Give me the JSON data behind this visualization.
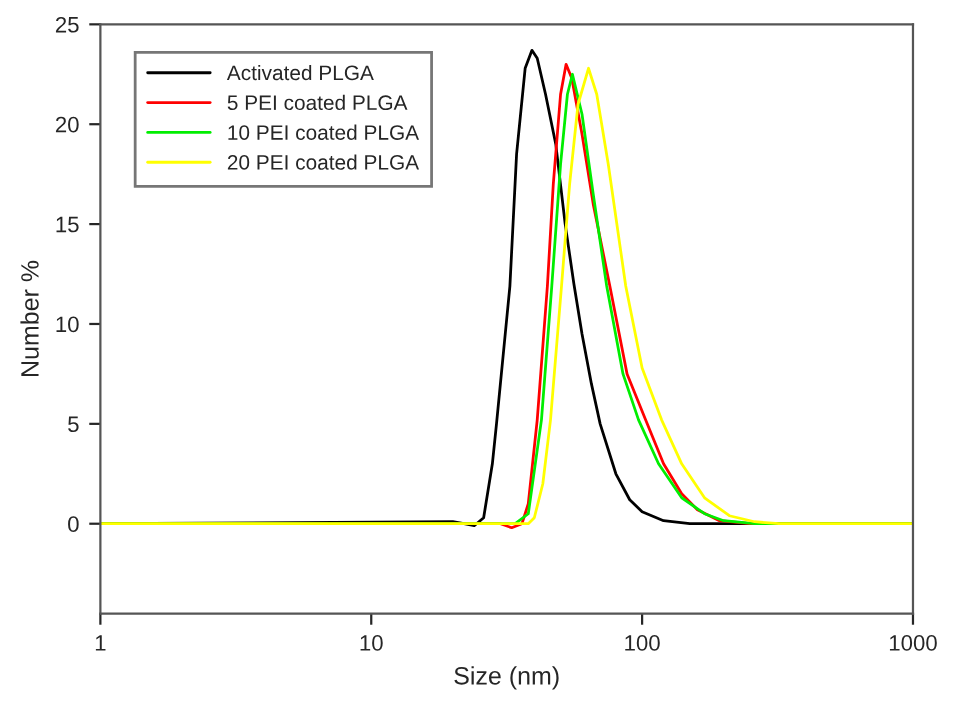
{
  "chart_data": {
    "type": "line",
    "xlabel": "Size (nm)",
    "ylabel": "Number %",
    "log": "x",
    "xlim": [
      1,
      1000
    ],
    "xticks": [
      1,
      10,
      100,
      1000
    ],
    "ylim": [
      -4.5,
      25
    ],
    "yticks": [
      0,
      5,
      10,
      15,
      20,
      25
    ],
    "grid": false,
    "legend": "top left",
    "marker": "none",
    "line_style": "solid",
    "series": [
      {
        "name": "Activated PLGA",
        "color": "#000000",
        "x": [
          1,
          20,
          22,
          24,
          26,
          28,
          29,
          32.5,
          34.4,
          37,
          39.2,
          41,
          44,
          48,
          52,
          56,
          60,
          65,
          70,
          80,
          90,
          100,
          120,
          150,
          1000
        ],
        "values": [
          0,
          0.1,
          0,
          -0.1,
          0.3,
          3,
          5,
          11.9,
          18.5,
          22.8,
          23.7,
          23.3,
          21.5,
          19,
          15,
          12,
          9.5,
          7,
          5,
          2.5,
          1.2,
          0.6,
          0.15,
          0,
          0
        ]
      },
      {
        "name": "5 PEI coated PLGA",
        "color": "#ff0000",
        "x": [
          1,
          30,
          33,
          36,
          38,
          41,
          44.7,
          47,
          50,
          52.4,
          55,
          60,
          66,
          76,
          88,
          103,
          120,
          140,
          160,
          193,
          250,
          1000
        ],
        "values": [
          0,
          0,
          -0.2,
          0,
          1,
          5.2,
          11.9,
          17,
          21.5,
          23.0,
          22.3,
          19.5,
          16,
          11.9,
          7.5,
          5.2,
          3,
          1.5,
          0.7,
          0.15,
          0,
          0
        ]
      },
      {
        "name": "10 PEI coated PLGA",
        "color": "#00ee00",
        "x": [
          1,
          34,
          38,
          42.5,
          46.4,
          50,
          53,
          55.3,
          60,
          66,
          74,
          85,
          97,
          115,
          140,
          170,
          200,
          260,
          1000
        ],
        "values": [
          0,
          0,
          0.5,
          5.2,
          11.9,
          18,
          21.5,
          22.5,
          20.5,
          16.5,
          11.9,
          7.5,
          5.2,
          3,
          1.3,
          0.5,
          0.15,
          0,
          0
        ]
      },
      {
        "name": "20 PEI coated PLGA",
        "color": "#ffff00",
        "x": [
          1,
          38,
          40,
          43,
          45.9,
          50.4,
          54,
          58,
          63.4,
          68,
          75,
          87,
          100,
          118,
          140,
          170,
          210,
          260,
          320,
          1000
        ],
        "values": [
          0,
          0,
          0.3,
          2,
          5.2,
          11.9,
          17,
          21,
          22.8,
          21.5,
          18,
          11.9,
          7.8,
          5.2,
          3,
          1.3,
          0.4,
          0.1,
          0,
          0
        ]
      }
    ]
  }
}
